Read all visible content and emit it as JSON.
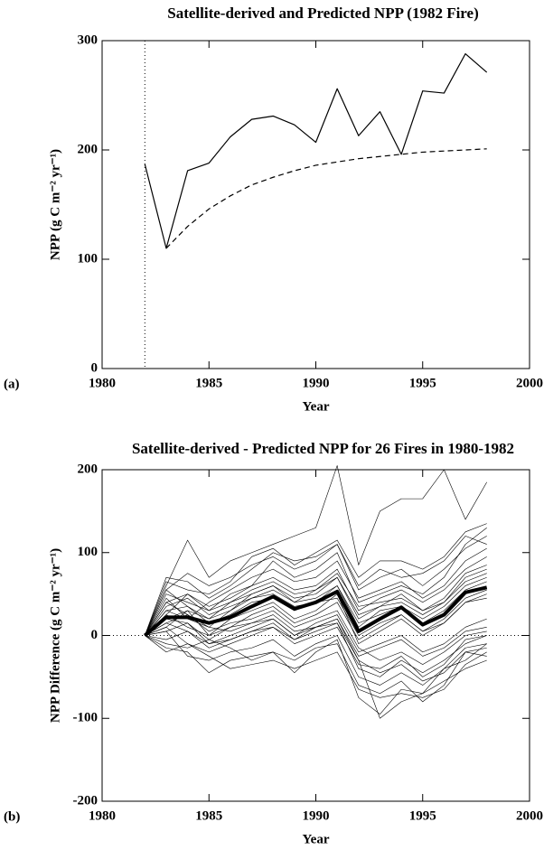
{
  "chart_data": [
    {
      "type": "line",
      "panel": "(a)",
      "title": "Satellite-derived and Predicted NPP (1982 Fire)",
      "x_label": "Year",
      "y_label": "NPP (g C m⁻² yr⁻¹)",
      "x": [
        1982,
        1983,
        1984,
        1985,
        1986,
        1987,
        1988,
        1989,
        1990,
        1991,
        1992,
        1993,
        1994,
        1995,
        1996,
        1997,
        1998
      ],
      "series": [
        {
          "color": "#000000",
          "width": 1.2,
          "dash": "none",
          "values": [
            187,
            110,
            181,
            188,
            212,
            228,
            231,
            223,
            207,
            256,
            213,
            235,
            196,
            254,
            252,
            288,
            271
          ]
        },
        {
          "color": "#000000",
          "width": 1.2,
          "dash": "6,4",
          "values": [
            null,
            110,
            130,
            146,
            158,
            168,
            175,
            181,
            186,
            189,
            192,
            194,
            196,
            198,
            199,
            200,
            201
          ]
        }
      ],
      "vline": 1982,
      "xlim": [
        1980,
        2000
      ],
      "xticks": [
        1980,
        1985,
        1990,
        1995,
        2000
      ],
      "ylim": [
        0,
        300
      ],
      "yticks": [
        0,
        100,
        200,
        300
      ]
    },
    {
      "type": "line",
      "panel": "(b)",
      "title": "Satellite-derived - Predicted NPP for 26 Fires in 1980-1982",
      "x_label": "Year",
      "y_label": "NPP Difference (g C m⁻² yr⁻¹)",
      "x": [
        1982,
        1983,
        1984,
        1985,
        1986,
        1987,
        1988,
        1989,
        1990,
        1991,
        1992,
        1993,
        1994,
        1995,
        1996,
        1997,
        1998
      ],
      "series": [
        {
          "color": "#000000",
          "width": 0.6,
          "values": [
            0,
            70,
            65,
            45,
            60,
            80,
            100,
            90,
            95,
            110,
            60,
            80,
            70,
            75,
            90,
            120,
            110
          ]
        },
        {
          "color": "#000000",
          "width": 0.6,
          "values": [
            0,
            60,
            115,
            70,
            90,
            100,
            110,
            120,
            130,
            205,
            85,
            150,
            165,
            165,
            200,
            140,
            185
          ]
        },
        {
          "color": "#000000",
          "width": 0.6,
          "values": [
            0,
            -15,
            -20,
            -45,
            -30,
            -25,
            -20,
            -30,
            -15,
            -10,
            -60,
            -70,
            -55,
            -80,
            -60,
            -20,
            -25
          ]
        },
        {
          "color": "#000000",
          "width": 0.6,
          "values": [
            0,
            30,
            20,
            10,
            5,
            15,
            20,
            0,
            10,
            20,
            -30,
            -100,
            -80,
            -70,
            -40,
            -30,
            -10
          ]
        },
        {
          "color": "#000000",
          "width": 0.6,
          "values": [
            0,
            50,
            40,
            30,
            50,
            60,
            90,
            70,
            80,
            100,
            40,
            50,
            60,
            50,
            70,
            110,
            130
          ]
        },
        {
          "color": "#000000",
          "width": 0.6,
          "values": [
            0,
            10,
            -10,
            -20,
            -10,
            0,
            10,
            -5,
            5,
            15,
            -40,
            -50,
            -30,
            -45,
            -30,
            -10,
            0
          ]
        },
        {
          "color": "#000000",
          "width": 0.6,
          "values": [
            0,
            20,
            30,
            20,
            30,
            50,
            60,
            40,
            55,
            70,
            20,
            35,
            50,
            30,
            40,
            70,
            80
          ]
        },
        {
          "color": "#000000",
          "width": 0.6,
          "values": [
            0,
            40,
            50,
            35,
            45,
            60,
            70,
            55,
            60,
            80,
            30,
            45,
            55,
            40,
            55,
            80,
            95
          ]
        },
        {
          "color": "#000000",
          "width": 0.6,
          "values": [
            0,
            -5,
            5,
            -10,
            0,
            10,
            20,
            0,
            15,
            25,
            -20,
            -10,
            0,
            -20,
            -10,
            10,
            20
          ]
        },
        {
          "color": "#000000",
          "width": 0.6,
          "values": [
            0,
            25,
            10,
            0,
            20,
            30,
            40,
            20,
            30,
            50,
            -10,
            5,
            20,
            0,
            15,
            40,
            50
          ]
        },
        {
          "color": "#000000",
          "width": 0.6,
          "values": [
            0,
            15,
            25,
            5,
            15,
            20,
            30,
            10,
            20,
            30,
            -15,
            -30,
            -20,
            -35,
            -20,
            0,
            5
          ]
        },
        {
          "color": "#000000",
          "width": 0.6,
          "values": [
            0,
            55,
            75,
            60,
            70,
            85,
            95,
            80,
            90,
            110,
            55,
            70,
            80,
            60,
            80,
            105,
            120
          ]
        },
        {
          "color": "#000000",
          "width": 0.6,
          "values": [
            0,
            35,
            45,
            25,
            35,
            45,
            50,
            35,
            40,
            60,
            15,
            25,
            35,
            20,
            35,
            60,
            70
          ]
        },
        {
          "color": "#000000",
          "width": 0.6,
          "values": [
            0,
            5,
            -25,
            -30,
            -20,
            -15,
            -5,
            -25,
            -10,
            0,
            -50,
            -60,
            -45,
            -60,
            -40,
            -15,
            -10
          ]
        },
        {
          "color": "#000000",
          "width": 0.6,
          "values": [
            0,
            45,
            20,
            40,
            55,
            70,
            80,
            65,
            70,
            90,
            45,
            55,
            65,
            45,
            60,
            90,
            105
          ]
        },
        {
          "color": "#000000",
          "width": 0.6,
          "values": [
            0,
            -10,
            -15,
            -5,
            -15,
            -30,
            -20,
            -45,
            -20,
            -5,
            -75,
            -95,
            -65,
            -70,
            -55,
            -40,
            -30
          ]
        },
        {
          "color": "#000000",
          "width": 0.6,
          "values": [
            0,
            30,
            35,
            15,
            25,
            40,
            45,
            30,
            40,
            45,
            0,
            15,
            25,
            5,
            15,
            40,
            45
          ]
        },
        {
          "color": "#000000",
          "width": 0.6,
          "values": [
            0,
            65,
            55,
            50,
            65,
            95,
            105,
            85,
            100,
            115,
            70,
            90,
            90,
            80,
            95,
            125,
            135
          ]
        },
        {
          "color": "#000000",
          "width": 0.6,
          "values": [
            0,
            20,
            15,
            -5,
            10,
            25,
            35,
            15,
            25,
            40,
            -5,
            10,
            25,
            5,
            20,
            45,
            55
          ]
        },
        {
          "color": "#000000",
          "width": 0.6,
          "values": [
            0,
            10,
            30,
            0,
            10,
            15,
            25,
            5,
            10,
            20,
            -25,
            -15,
            -5,
            -25,
            -15,
            5,
            10
          ]
        },
        {
          "color": "#000000",
          "width": 0.6,
          "values": [
            0,
            55,
            35,
            20,
            40,
            55,
            65,
            50,
            55,
            75,
            35,
            40,
            45,
            30,
            45,
            75,
            85
          ]
        },
        {
          "color": "#000000",
          "width": 0.6,
          "values": [
            0,
            -20,
            -10,
            -25,
            -40,
            -35,
            -30,
            -40,
            -30,
            -20,
            -65,
            -75,
            -70,
            -75,
            -65,
            -35,
            -20
          ]
        },
        {
          "color": "#000000",
          "width": 0.6,
          "values": [
            0,
            25,
            50,
            30,
            40,
            50,
            60,
            45,
            50,
            70,
            25,
            35,
            40,
            25,
            40,
            65,
            75
          ]
        },
        {
          "color": "#000000",
          "width": 0.6,
          "values": [
            0,
            15,
            5,
            -15,
            -5,
            5,
            10,
            -10,
            0,
            10,
            -35,
            -40,
            -25,
            -50,
            -35,
            -5,
            0
          ]
        },
        {
          "color": "#000000",
          "width": 0.6,
          "values": [
            0,
            40,
            25,
            10,
            30,
            45,
            55,
            40,
            45,
            60,
            10,
            30,
            35,
            15,
            30,
            55,
            65
          ]
        },
        {
          "color": "#000000",
          "width": 0.6,
          "values": [
            0,
            5,
            15,
            -10,
            -5,
            5,
            15,
            -5,
            10,
            15,
            -30,
            -45,
            -35,
            -55,
            -45,
            -20,
            -15
          ]
        },
        {
          "color": "#000000",
          "width": 4,
          "values": [
            0,
            22,
            22,
            15,
            22,
            35,
            47,
            32,
            40,
            53,
            5,
            20,
            34,
            13,
            25,
            52,
            58
          ]
        }
      ],
      "hline": 0,
      "xlim": [
        1980,
        2000
      ],
      "xticks": [
        1980,
        1985,
        1990,
        1995,
        2000
      ],
      "ylim": [
        -200,
        200
      ],
      "yticks": [
        -200,
        -100,
        0,
        100,
        200
      ]
    }
  ]
}
